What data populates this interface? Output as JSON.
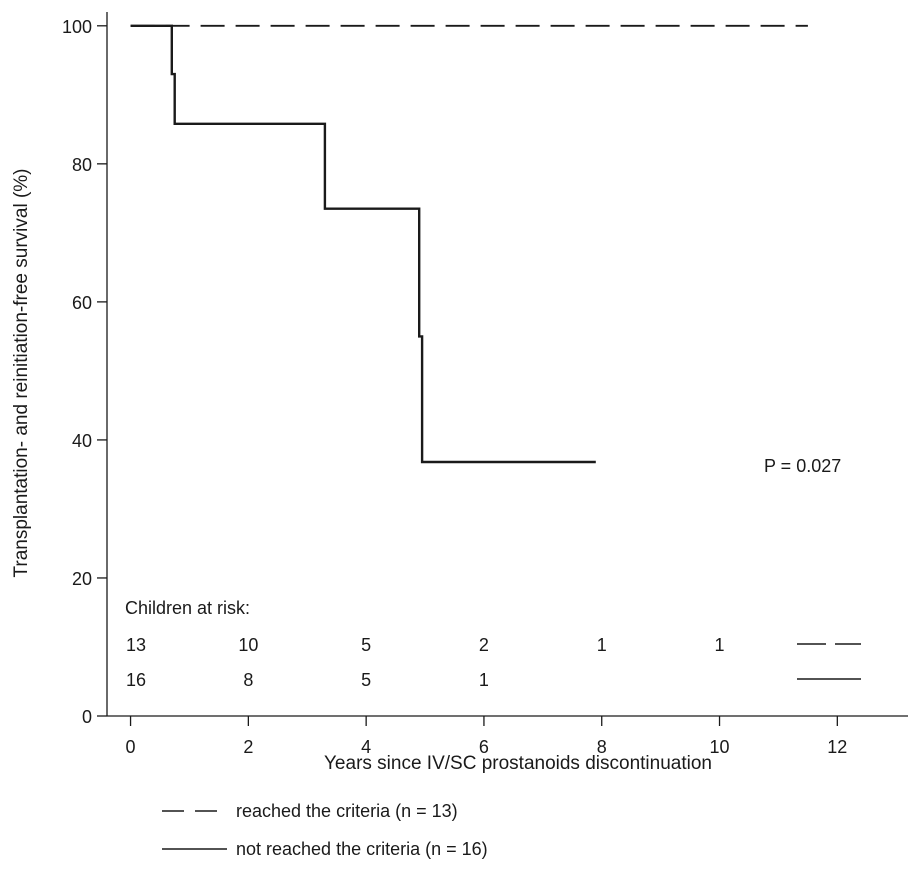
{
  "chart_data": {
    "type": "line",
    "title": "",
    "xlabel": "Years since IV/SC prostanoids discontinuation",
    "ylabel": "Transplantation- and reinitiation-free survival (%)",
    "xlim": [
      -0.4,
      13.2
    ],
    "ylim": [
      0,
      102
    ],
    "x_ticks": [
      0,
      2,
      4,
      6,
      8,
      10,
      12
    ],
    "x_tick_labels": [
      "0",
      "2",
      "4",
      "6",
      "8",
      "10",
      "12"
    ],
    "y_ticks": [
      0,
      20,
      40,
      60,
      80,
      100
    ],
    "y_tick_labels": [
      "0",
      "20",
      "40",
      "60",
      "80",
      "100"
    ],
    "grid": false,
    "series": [
      {
        "name": "reached the criteria (n = 13)",
        "style": "dashed",
        "step": true,
        "x": [
          0,
          11.5
        ],
        "y": [
          100,
          100
        ]
      },
      {
        "name": "not reached the criteria (n = 16)",
        "style": "solid",
        "step": true,
        "x": [
          0,
          0.7,
          0.75,
          3.3,
          4.9,
          4.95,
          7.9
        ],
        "y": [
          100,
          93,
          85.8,
          73.5,
          55,
          36.8,
          36.8
        ]
      }
    ],
    "annotation": "P = 0.027",
    "risk_table": {
      "title": "Children at risk:",
      "x_positions": [
        0,
        2,
        4,
        6,
        8,
        10
      ],
      "rows": [
        {
          "style": "dashed",
          "values": [
            "13",
            "10",
            "5",
            "2",
            "1",
            "1"
          ]
        },
        {
          "style": "solid",
          "values": [
            "16",
            "8",
            "5",
            "1",
            "",
            ""
          ]
        }
      ]
    },
    "legend": [
      {
        "style": "dashed",
        "label": "reached the criteria (n = 13)"
      },
      {
        "style": "solid",
        "label": "not reached the criteria (n = 16)"
      }
    ],
    "legend_position": "bottom-left"
  }
}
